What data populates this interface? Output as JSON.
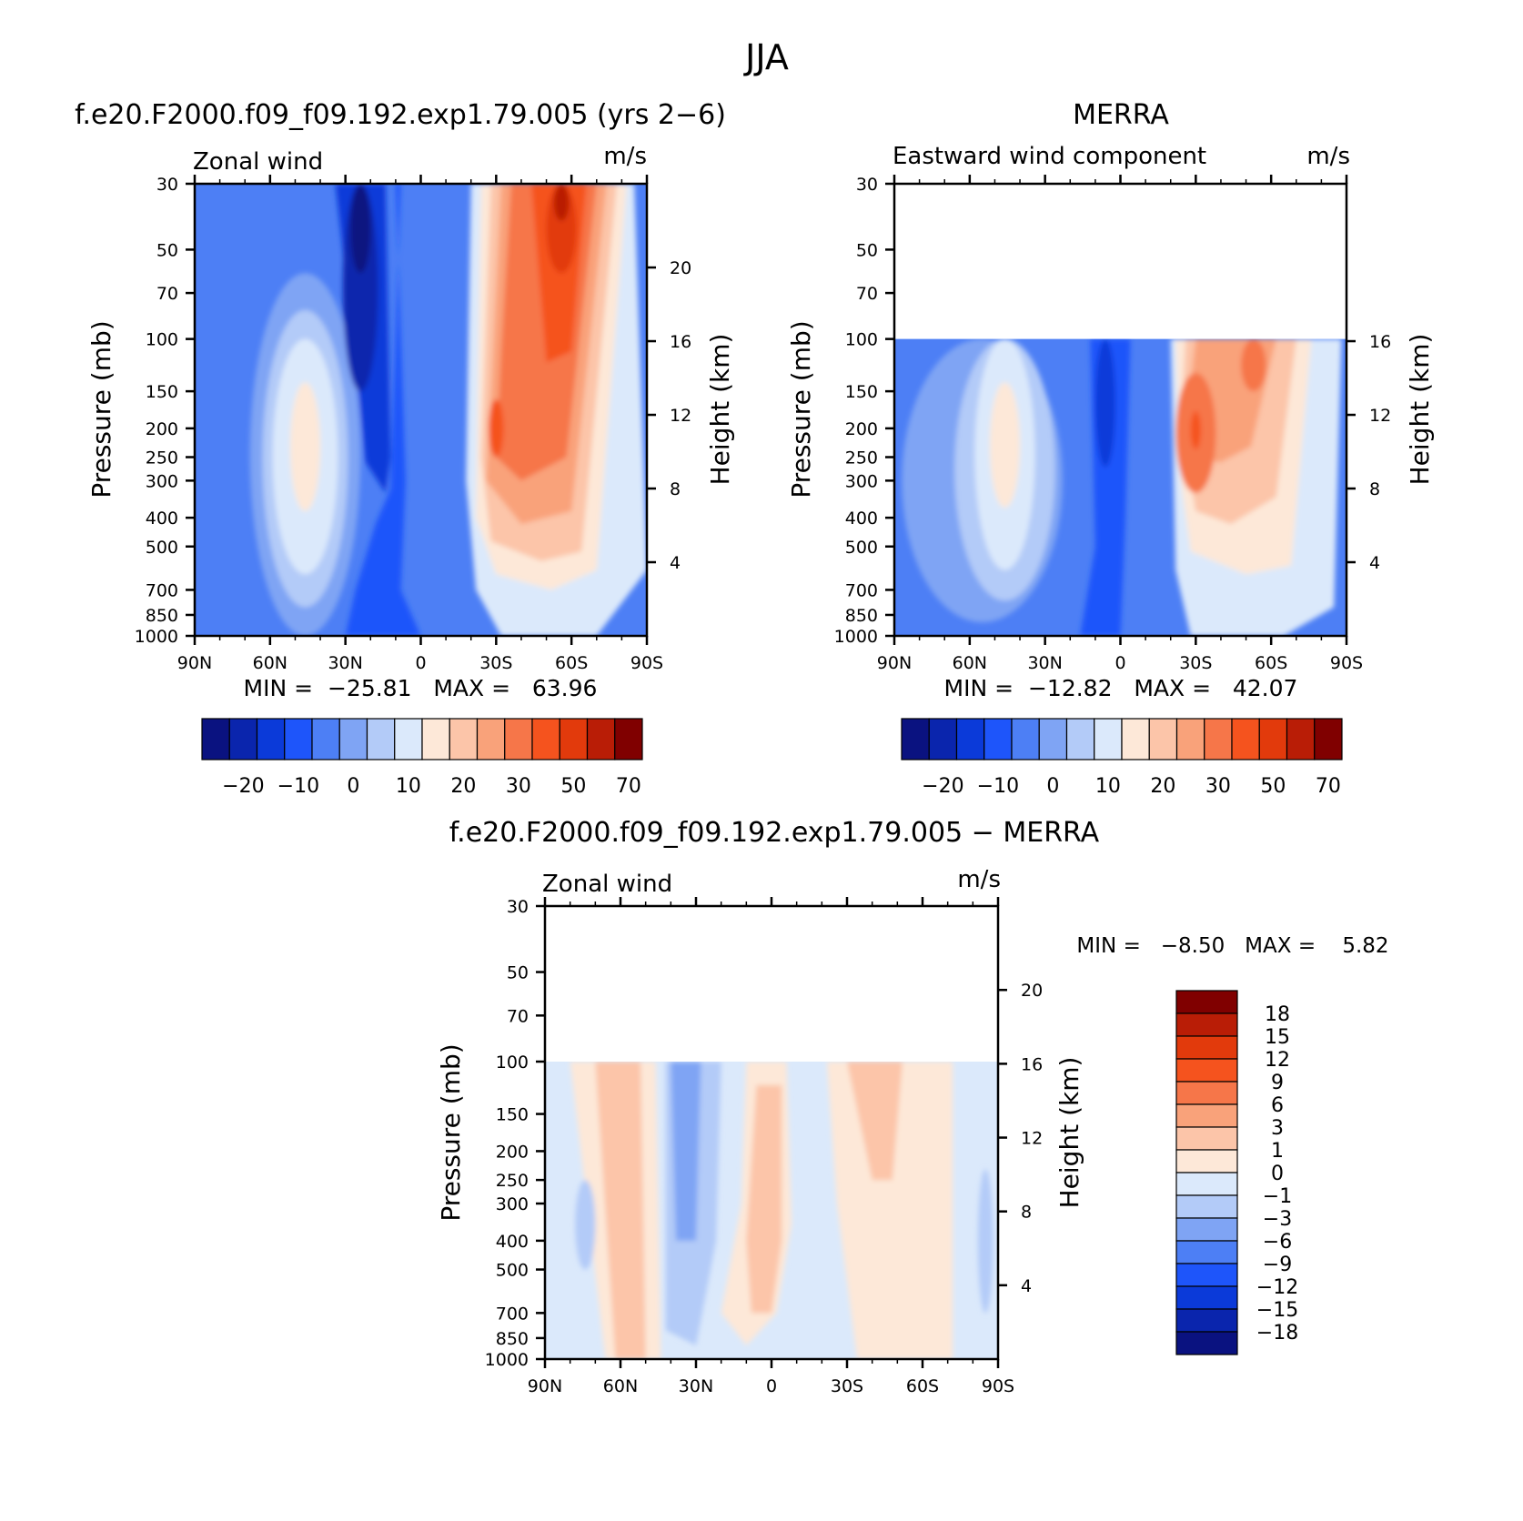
{
  "page_title": "JJA",
  "chart_data": [
    {
      "type": "heatmap",
      "id": "model",
      "title": "f.e20.F2000.f09_f09.192.exp1.79.005 (yrs 2−6)",
      "left_label": "Zonal wind",
      "right_label": "m/s",
      "ylabel": "Pressure (mb)",
      "ylabel_right": "Height (km)",
      "x_ticks": [
        "90N",
        "60N",
        "30N",
        "0",
        "30S",
        "60S",
        "90S"
      ],
      "x_range": [
        90,
        -90
      ],
      "y_ticks": [
        30,
        50,
        70,
        100,
        150,
        200,
        250,
        300,
        400,
        500,
        700,
        850,
        1000
      ],
      "y_range": [
        30,
        1000
      ],
      "height_ticks": [
        20,
        16,
        12,
        8,
        4
      ],
      "min_max": "MIN =  −25.81   MAX =   63.96",
      "min": -25.81,
      "max": 63.96,
      "data_bottom_pressure": 30,
      "features": [
        {
          "lat": 24,
          "p": 40,
          "value": -25,
          "desc": "tropical easterly jet core"
        },
        {
          "lat": -55,
          "p": 40,
          "value": 64,
          "desc": "southern polar night jet"
        },
        {
          "lat": -30,
          "p": 200,
          "value": 50,
          "desc": "subtropical jet"
        },
        {
          "lat": 45,
          "p": 200,
          "value": 20,
          "desc": "northern midlatitude jet"
        }
      ],
      "colorbar": {
        "labels": [
          "−20",
          "−10",
          "0",
          "10",
          "20",
          "30",
          "50",
          "70"
        ],
        "colors": [
          "#0a1280",
          "#0a25ad",
          "#0b3ad9",
          "#1e55fa",
          "#4d7ff5",
          "#7fa4f4",
          "#b3cbf8",
          "#dbe9fb",
          "#fde8d8",
          "#fcc5a9",
          "#f9a27a",
          "#f67649",
          "#f5531e",
          "#e23a0c",
          "#b91d06",
          "#800000"
        ]
      }
    },
    {
      "type": "heatmap",
      "id": "obs",
      "title": "MERRA",
      "left_label": "Eastward wind component",
      "right_label": "m/s",
      "ylabel": "Pressure (mb)",
      "ylabel_right": "Height (km)",
      "x_ticks": [
        "90N",
        "60N",
        "30N",
        "0",
        "30S",
        "60S",
        "90S"
      ],
      "x_range": [
        90,
        -90
      ],
      "y_ticks": [
        30,
        50,
        70,
        100,
        150,
        200,
        250,
        300,
        400,
        500,
        700,
        850,
        1000
      ],
      "y_range": [
        30,
        1000
      ],
      "height_ticks": [
        16,
        12,
        8,
        4
      ],
      "min_max": "MIN =  −12.82   MAX =   42.07",
      "min": -12.82,
      "max": 42.07,
      "data_bottom_pressure": 100,
      "features": [
        {
          "lat": -30,
          "p": 200,
          "value": 42,
          "desc": "subtropical jet"
        },
        {
          "lat": 45,
          "p": 200,
          "value": 20,
          "desc": "northern midlatitude jet"
        },
        {
          "lat": 5,
          "p": 150,
          "value": -12,
          "desc": "tropical easterlies"
        }
      ],
      "colorbar": {
        "labels": [
          "−20",
          "−10",
          "0",
          "10",
          "20",
          "30",
          "50",
          "70"
        ],
        "colors": [
          "#0a1280",
          "#0a25ad",
          "#0b3ad9",
          "#1e55fa",
          "#4d7ff5",
          "#7fa4f4",
          "#b3cbf8",
          "#dbe9fb",
          "#fde8d8",
          "#fcc5a9",
          "#f9a27a",
          "#f67649",
          "#f5531e",
          "#e23a0c",
          "#b91d06",
          "#800000"
        ]
      }
    },
    {
      "type": "heatmap",
      "id": "diff",
      "title": "f.e20.F2000.f09_f09.192.exp1.79.005 − MERRA",
      "left_label": "Zonal wind",
      "right_label": "m/s",
      "ylabel": "Pressure (mb)",
      "ylabel_right": "Height (km)",
      "x_ticks": [
        "90N",
        "60N",
        "30N",
        "0",
        "30S",
        "60S",
        "90S"
      ],
      "x_range": [
        90,
        -90
      ],
      "y_ticks": [
        30,
        50,
        70,
        100,
        150,
        200,
        250,
        300,
        400,
        500,
        700,
        850,
        1000
      ],
      "y_range": [
        30,
        1000
      ],
      "height_ticks": [
        20,
        16,
        12,
        8,
        4
      ],
      "min_max": "MIN =   −8.50   MAX =    5.82",
      "min": -8.5,
      "max": 5.82,
      "data_bottom_pressure": 100,
      "features": [
        {
          "lat": 55,
          "p": 300,
          "value": 4,
          "desc": "northern positive band"
        },
        {
          "lat": -45,
          "p": 150,
          "value": 4,
          "desc": "southern positive band"
        },
        {
          "lat": 30,
          "p": 150,
          "value": -5,
          "desc": "northern tropics negative"
        }
      ],
      "colorbar": {
        "labels": [
          "18",
          "15",
          "12",
          "9",
          "6",
          "3",
          "1",
          "0",
          "−1",
          "−3",
          "−6",
          "−9",
          "−12",
          "−15",
          "−18"
        ],
        "colors": [
          "#800000",
          "#b91d06",
          "#e23a0c",
          "#f5531e",
          "#f67649",
          "#f9a27a",
          "#fcc5a9",
          "#fde8d8",
          "#dbe9fb",
          "#b3cbf8",
          "#7fa4f4",
          "#4d7ff5",
          "#1e55fa",
          "#0b3ad9",
          "#0a25ad",
          "#0a1280"
        ]
      }
    }
  ]
}
